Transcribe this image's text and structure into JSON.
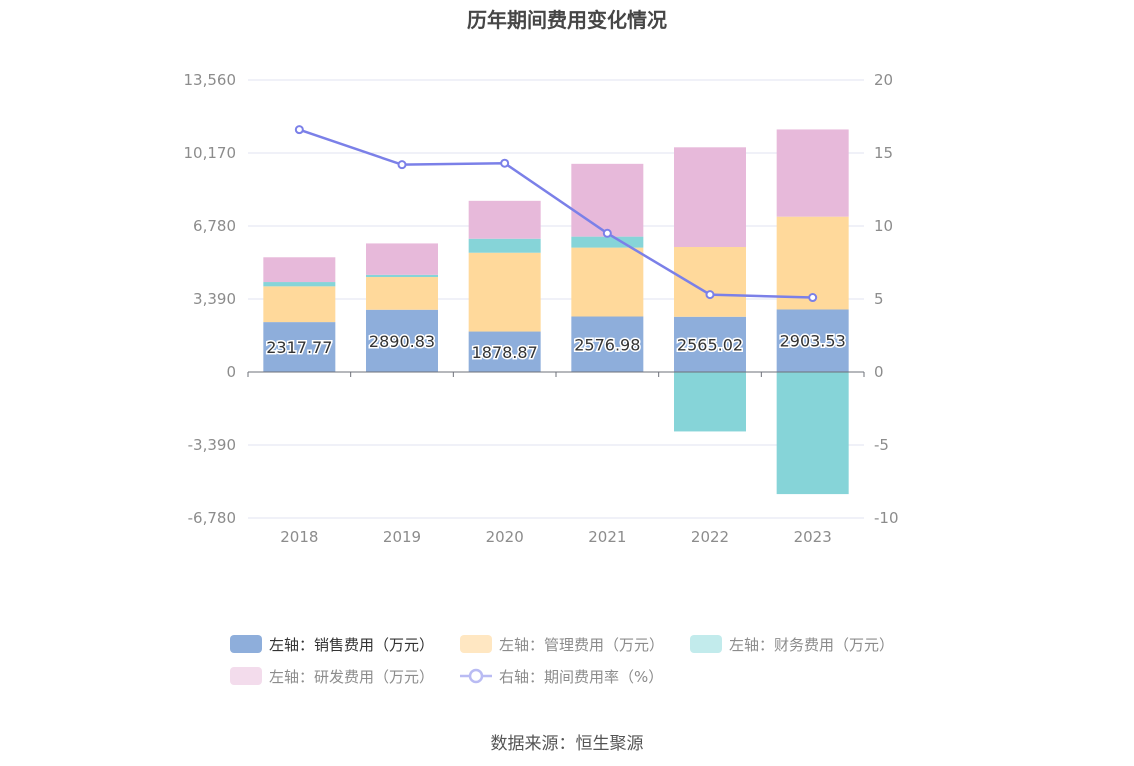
{
  "title": "历年期间费用变化情况",
  "source": "数据来源：恒生聚源",
  "colors": {
    "sales": "#8eaedb",
    "admin": "#ffd99b",
    "finance": "#86d4d8",
    "rd": "#e7b9da",
    "rate": "#7b80e8",
    "legend_admin": "#ffe7c2",
    "legend_finance": "#c2ebec",
    "legend_rd": "#f3dcec",
    "legend_rate": "#b9bbf3"
  },
  "chart_data": {
    "type": "bar",
    "stacked": true,
    "categories": [
      "2018",
      "2019",
      "2020",
      "2021",
      "2022",
      "2023"
    ],
    "left_axis": {
      "ticks": [
        "13,560",
        "10,170",
        "6,780",
        "3,390",
        "0",
        "-3,390",
        "-6,780"
      ],
      "range": [
        -6780,
        13560
      ]
    },
    "right_axis": {
      "ticks": [
        "20",
        "15",
        "10",
        "5",
        "0",
        "-5",
        "-10"
      ],
      "range": [
        -10,
        20
      ]
    },
    "series": [
      {
        "key": "sales",
        "name": "左轴：销售费用（万元）",
        "axis": "left",
        "values": [
          2317.77,
          2890.83,
          1878.87,
          2576.98,
          2565.02,
          2903.53
        ],
        "labels": [
          "2317.77",
          "2890.83",
          "1878.87",
          "2576.98",
          "2565.02",
          "2903.53"
        ]
      },
      {
        "key": "admin",
        "name": "左轴：管理费用（万元）",
        "axis": "left",
        "values": [
          1660,
          1520,
          3660,
          3200,
          3240,
          4310
        ]
      },
      {
        "key": "finance",
        "name": "左轴：财务费用（万元）",
        "axis": "left",
        "values": [
          200,
          100,
          650,
          510,
          -2760,
          -5670
        ]
      },
      {
        "key": "rd",
        "name": "左轴：研发费用（万元）",
        "axis": "left",
        "values": [
          1150,
          1460,
          1760,
          3380,
          4630,
          4050
        ]
      },
      {
        "key": "rate",
        "name": "右轴：期间费用率（%）",
        "axis": "right",
        "type": "line",
        "values": [
          16.6,
          14.2,
          14.3,
          9.5,
          5.3,
          5.1
        ]
      }
    ],
    "grid": true,
    "legend_position": "bottom"
  }
}
